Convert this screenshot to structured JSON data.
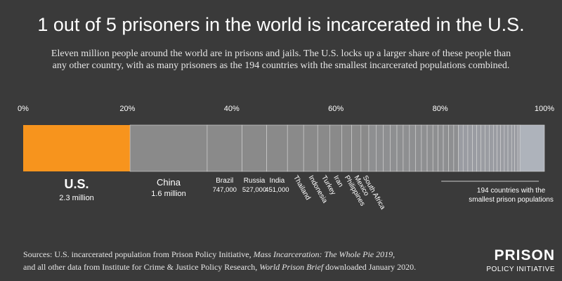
{
  "title": "1 out of 5 prisoners in the world is incarcerated in the U.S.",
  "subtitle": [
    "Eleven million people around the world are in prisons and jails. The U.S. locks up a larger share of these people than",
    "any other country, with as many prisoners as the 194 countries with the smallest incarcerated populations combined."
  ],
  "sources": [
    [
      "Sources: U.S. incarcerated population from Prison Policy Initiative, ",
      "Mass Incarceration: The Whole Pie 2019",
      ","
    ],
    [
      "and all other data from Institute for Crime & Justice Policy Research, ",
      "World Prison Brief",
      " downloaded January 2020."
    ]
  ],
  "logo": {
    "line1": "PRISON",
    "line2": "POLICY INITIATIVE"
  },
  "chart_data": {
    "type": "stacked-share-bar",
    "xlim": [
      0,
      100
    ],
    "xticks": [
      {
        "value": 0,
        "label": "0%"
      },
      {
        "value": 20,
        "label": "20%"
      },
      {
        "value": 40,
        "label": "40%"
      },
      {
        "value": 60,
        "label": "60%"
      },
      {
        "value": 80,
        "label": "80%"
      },
      {
        "value": 100,
        "label": "100%"
      }
    ],
    "categories": [
      "U.S.",
      "China",
      "Brazil",
      "Russia",
      "India",
      "Thailand",
      "Indonesia",
      "Turkey",
      "Iran",
      "Philippines",
      "Mexico",
      "South Africa",
      null,
      null,
      null,
      null,
      null,
      null,
      null,
      null,
      null,
      null,
      null,
      null,
      null,
      null,
      null,
      null,
      null,
      null,
      null,
      null,
      null,
      null,
      null,
      null,
      null,
      null,
      null,
      null,
      null,
      null,
      null,
      "194 countries with the smallest prison populations"
    ],
    "population_labels": [
      "2.3 million",
      "1.6 million",
      "747,000",
      "527,000",
      "451,000",
      null,
      null,
      null,
      null,
      null,
      null,
      null,
      null,
      null,
      null,
      null,
      null,
      null,
      null,
      null,
      null,
      null,
      null,
      null,
      null,
      null,
      null,
      null,
      null,
      null,
      null,
      null,
      null,
      null,
      null,
      null,
      null,
      null,
      null,
      null,
      null,
      null,
      null,
      null
    ],
    "values": [
      20.5,
      14.8,
      6.7,
      4.7,
      4.0,
      3.1,
      2.7,
      2.3,
      2.3,
      1.9,
      1.8,
      1.5,
      1.4,
      1.4,
      1.3,
      1.3,
      1.2,
      1.2,
      1.2,
      1.1,
      1.1,
      1.1,
      1.0,
      1.0,
      1.0,
      1.0,
      0.9,
      0.9,
      0.9,
      0.9,
      0.8,
      0.8,
      0.8,
      0.8,
      0.8,
      0.7,
      0.7,
      0.7,
      0.7,
      0.7,
      0.6,
      0.6,
      0.4,
      4.7
    ],
    "colors": [
      "#f7941d",
      "#8a8a8a",
      "#8a8a8a",
      "#8a8a8a",
      "#8a8a8a",
      "#8a8a8a",
      "#8a8a8a",
      "#8a8a8a",
      "#8a8a8a",
      "#8a8a8a",
      "#8a8a8a",
      "#8a8a8a",
      "#8e8f91",
      "#8e8f91",
      "#8e8f91",
      "#8e8f91",
      "#8e8f91",
      "#8e8f91",
      "#8e8f91",
      "#8e8f91",
      "#8e8f91",
      "#8e8f91",
      "#8e8f91",
      "#8e8f91",
      "#8e8f91",
      "#8e8f91",
      "#8e8f91",
      "#9a9ca2",
      "#9a9ca2",
      "#9a9ca2",
      "#9a9ca2",
      "#9a9ca2",
      "#9a9ca2",
      "#9a9ca2",
      "#9a9ca2",
      "#9a9ca2",
      "#9a9ca2",
      "#9a9ca2",
      "#9a9ca2",
      "#9a9ca2",
      "#9a9ca2",
      "#9a9ca2",
      "#9a9ca2",
      "#aeb3bb"
    ]
  }
}
